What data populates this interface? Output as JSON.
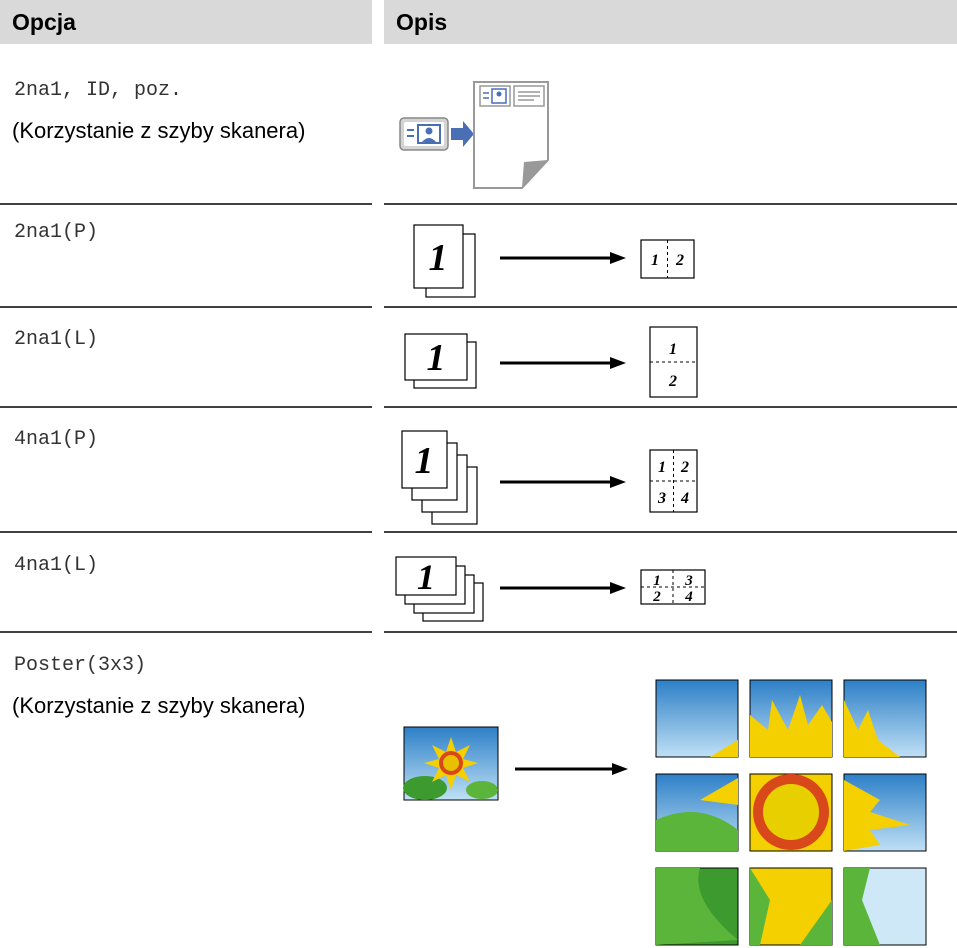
{
  "header": {
    "option": "Opcja",
    "description": "Opis"
  },
  "rows": [
    {
      "option": "2na1, ID, poz.",
      "note": "(Korzystanie z szyby skanera)"
    },
    {
      "option": "2na1(P)",
      "source_label": "1",
      "result_labels": [
        "1",
        "2"
      ]
    },
    {
      "option": "2na1(L)",
      "source_label": "1",
      "result_labels": [
        "1",
        "2"
      ]
    },
    {
      "option": "4na1(P)",
      "source_label": "1",
      "result_labels": [
        "1",
        "2",
        "3",
        "4"
      ]
    },
    {
      "option": "4na1(L)",
      "source_label": "1",
      "result_labels": [
        "1",
        "3",
        "2",
        "4"
      ]
    },
    {
      "option": "Poster(3x3)",
      "note": "(Korzystanie z szyby skanera)"
    }
  ]
}
